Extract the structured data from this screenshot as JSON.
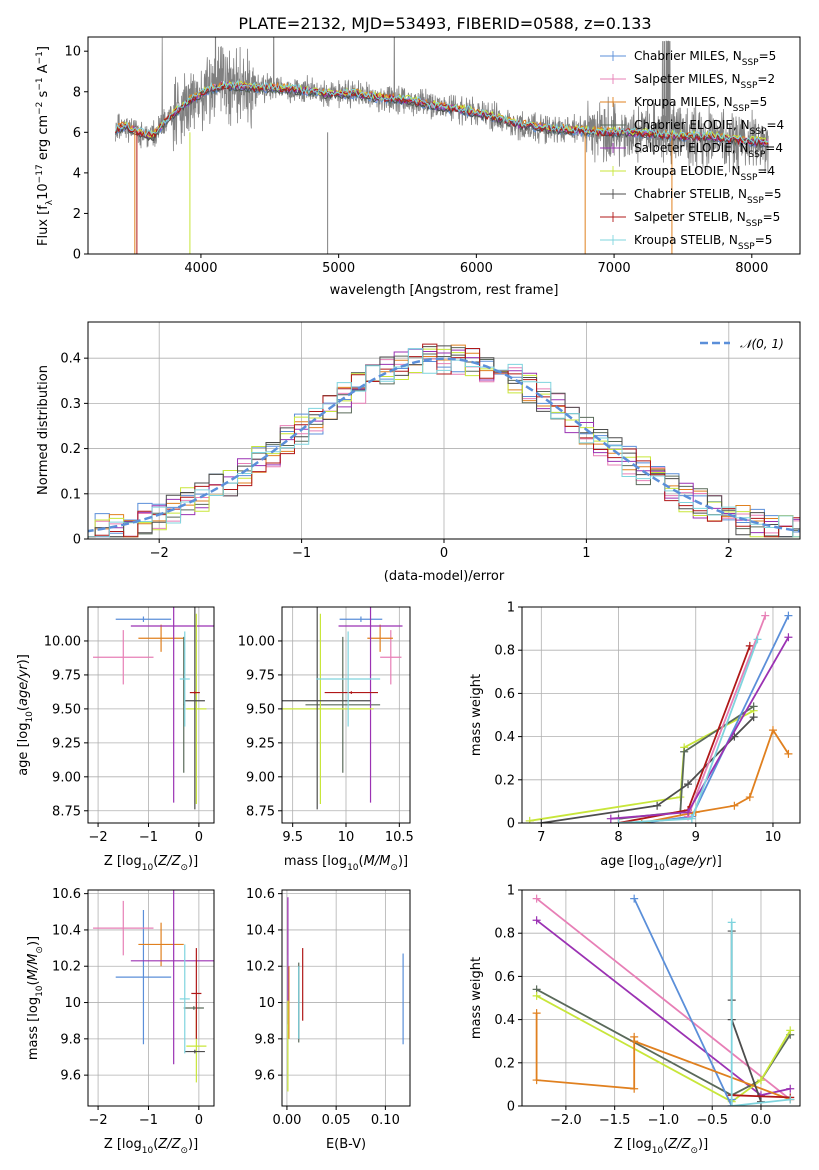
{
  "title": "PLATE=2132, MJD=53493, FIBERID=0588, z=0.133",
  "model_colors": {
    "Chabrier MILES": "#5b8fd9",
    "Salpeter MILES": "#e77fb6",
    "Kroupa MILES": "#e0801f",
    "Chabrier ELODIE": "#5a6a5a",
    "Salpeter ELODIE": "#9b32b3",
    "Kroupa ELODIE": "#c8e63a",
    "Chabrier STELIB": "#4d4d4d",
    "Salpeter STELIB": "#b01818",
    "Kroupa STELIB": "#7fd4de"
  },
  "chart_data": [
    {
      "id": "spectrum",
      "type": "line",
      "xlabel": "wavelength [Angstrom, rest frame]",
      "ylabel": "Flux [f_λ 10^-17 erg cm^-2 s^-1 A^-1]",
      "xlim": [
        3180,
        8350
      ],
      "ylim": [
        0,
        10.7
      ],
      "xticks": [
        4000,
        5000,
        6000,
        7000,
        8000
      ],
      "yticks": [
        0,
        2,
        4,
        6,
        8,
        10
      ],
      "grid": false,
      "legend_position": "right",
      "legend": [
        {
          "label": "Chabrier MILES, N",
          "sub": "SSP",
          "suffix": "=5",
          "color": "#5b8fd9"
        },
        {
          "label": "Salpeter MILES, N",
          "sub": "SSP",
          "suffix": "=2",
          "color": "#e77fb6"
        },
        {
          "label": "Kroupa MILES, N",
          "sub": "SSP",
          "suffix": "=5",
          "color": "#e0801f"
        },
        {
          "label": "Chabrier ELODIE, N",
          "sub": "SSP",
          "suffix": "=4",
          "color": "#5a6a5a"
        },
        {
          "label": "Salpeter ELODIE, N",
          "sub": "SSP",
          "suffix": "=4",
          "color": "#9b32b3"
        },
        {
          "label": "Kroupa ELODIE, N",
          "sub": "SSP",
          "suffix": "=4",
          "color": "#c8e63a"
        },
        {
          "label": "Chabrier STELIB, N",
          "sub": "SSP",
          "suffix": "=5",
          "color": "#4d4d4d"
        },
        {
          "label": "Salpeter STELIB, N",
          "sub": "SSP",
          "suffix": "=5",
          "color": "#b01818"
        },
        {
          "label": "Kroupa STELIB, N",
          "sub": "SSP",
          "suffix": "=5",
          "color": "#7fd4de"
        }
      ],
      "data_series_color": "#808080",
      "model_continuum": {
        "x": [
          3360,
          3450,
          3550,
          3650,
          3750,
          3850,
          3950,
          4050,
          4150,
          4250,
          4350,
          4500,
          4700,
          4900,
          5100,
          5300,
          5500,
          5700,
          5900,
          6100,
          6300,
          6500,
          6700,
          6900,
          7100,
          7300,
          7500,
          7700,
          7900,
          8100
        ],
        "y": [
          6.1,
          6.3,
          6.0,
          5.8,
          6.6,
          7.2,
          7.7,
          8.1,
          8.3,
          8.3,
          8.2,
          8.2,
          8.1,
          7.9,
          7.9,
          7.7,
          7.6,
          7.3,
          7.1,
          6.8,
          6.4,
          6.2,
          6.1,
          6.0,
          6.0,
          5.9,
          5.8,
          5.8,
          5.6,
          5.5
        ]
      }
    },
    {
      "id": "residuals",
      "type": "histogram",
      "xlabel": "(data-model)/error",
      "ylabel": "Normed distribution",
      "xlim": [
        -2.5,
        2.5
      ],
      "ylim": [
        0,
        0.48
      ],
      "xticks": [
        -2,
        -1,
        0,
        1,
        2
      ],
      "yticks": [
        0.0,
        0.1,
        0.2,
        0.3,
        0.4
      ],
      "grid": true,
      "legend_position": "top-right",
      "reference_label": "𝒩(0, 1)",
      "reference_color": "#5b8fd9"
    },
    {
      "id": "age_vs_Z",
      "type": "errorbar",
      "xlabel": "Z [log10(Z/Z⊙)]",
      "ylabel": "age  [log10(age/yr)]",
      "xlim": [
        -2.2,
        0.3
      ],
      "ylim": [
        8.66,
        10.25
      ],
      "xticks": [
        -2,
        -1,
        0
      ],
      "yticks": [
        8.75,
        9.0,
        9.25,
        9.5,
        9.75,
        10.0
      ],
      "grid": true,
      "points": [
        {
          "model": "Chabrier MILES",
          "x": -1.1,
          "xerr": 0.55,
          "y": 10.16,
          "yerr": 0.02
        },
        {
          "model": "Salpeter MILES",
          "x": -1.5,
          "xerr": 0.6,
          "y": 9.88,
          "yerr": 0.2
        },
        {
          "model": "Kroupa MILES",
          "x": -0.75,
          "xerr": 0.45,
          "y": 10.02,
          "yerr": 0.1
        },
        {
          "model": "Chabrier ELODIE",
          "x": -0.3,
          "xerr": 0.01,
          "y": 9.53,
          "yerr": 0.5
        },
        {
          "model": "Salpeter ELODIE",
          "x": -0.5,
          "xerr": 0.85,
          "y": 10.11,
          "yerr": 1.3
        },
        {
          "model": "Kroupa ELODIE",
          "x": -0.05,
          "xerr": 0.2,
          "y": 9.5,
          "yerr": 0.7
        },
        {
          "model": "Chabrier STELIB",
          "x": -0.08,
          "xerr": 0.2,
          "y": 9.56,
          "yerr": 0.8
        },
        {
          "model": "Salpeter STELIB",
          "x": -0.08,
          "xerr": 0.1,
          "y": 9.62,
          "yerr": 0.01
        },
        {
          "model": "Kroupa STELIB",
          "x": -0.28,
          "xerr": 0.1,
          "y": 9.72,
          "yerr": 0.35
        }
      ]
    },
    {
      "id": "age_vs_mass",
      "type": "errorbar",
      "xlabel": "mass [log10(M/M⊙)]",
      "ylabel": "",
      "xlim": [
        9.4,
        10.6
      ],
      "ylim": [
        8.66,
        10.25
      ],
      "xticks": [
        9.5,
        10.0,
        10.5
      ],
      "yticks": [
        8.75,
        9.0,
        9.25,
        9.5,
        9.75,
        10.0
      ],
      "grid": true,
      "points": [
        {
          "model": "Chabrier MILES",
          "x": 10.14,
          "xerr": 0.2,
          "y": 10.16,
          "yerr": 0.02
        },
        {
          "model": "Salpeter MILES",
          "x": 10.42,
          "xerr": 0.1,
          "y": 9.88,
          "yerr": 0.2
        },
        {
          "model": "Kroupa MILES",
          "x": 10.32,
          "xerr": 0.12,
          "y": 10.02,
          "yerr": 0.1
        },
        {
          "model": "Chabrier ELODIE",
          "x": 9.97,
          "xerr": 0.35,
          "y": 9.53,
          "yerr": 0.5
        },
        {
          "model": "Salpeter ELODIE",
          "x": 10.23,
          "xerr": 0.3,
          "y": 10.11,
          "yerr": 1.3
        },
        {
          "model": "Kroupa ELODIE",
          "x": 9.76,
          "xerr": 0.5,
          "y": 9.5,
          "yerr": 0.7
        },
        {
          "model": "Chabrier STELIB",
          "x": 9.73,
          "xerr": 0.5,
          "y": 9.56,
          "yerr": 0.8
        },
        {
          "model": "Salpeter STELIB",
          "x": 10.05,
          "xerr": 0.25,
          "y": 9.62,
          "yerr": 0.01
        },
        {
          "model": "Kroupa STELIB",
          "x": 10.02,
          "xerr": 0.3,
          "y": 9.72,
          "yerr": 0.35
        }
      ]
    },
    {
      "id": "weight_vs_age",
      "type": "line",
      "xlabel": "age  [log10(age/yr)]",
      "ylabel": "mass weight",
      "xlim": [
        6.75,
        10.35
      ],
      "ylim": [
        0,
        1.0
      ],
      "xticks": [
        7,
        8,
        9,
        10
      ],
      "yticks": [
        0.0,
        0.2,
        0.4,
        0.6,
        0.8,
        1.0
      ],
      "grid": true,
      "series": [
        {
          "model": "Kroupa ELODIE",
          "x": [
            6.85,
            8.8,
            8.85,
            9.75
          ],
          "y": [
            0.01,
            0.12,
            0.35,
            0.52
          ]
        },
        {
          "model": "Chabrier ELODIE",
          "x": [
            8.0,
            8.8,
            8.85,
            9.75
          ],
          "y": [
            0.02,
            0.05,
            0.33,
            0.54
          ]
        },
        {
          "model": "Chabrier STELIB",
          "x": [
            7.0,
            8.5,
            8.9,
            9.5,
            9.75
          ],
          "y": [
            0.0,
            0.08,
            0.18,
            0.4,
            0.49
          ]
        },
        {
          "model": "Salpeter STELIB",
          "x": [
            8.0,
            8.9,
            9.7
          ],
          "y": [
            0.0,
            0.06,
            0.82
          ]
        },
        {
          "model": "Chabrier MILES",
          "x": [
            8.3,
            8.95,
            10.2
          ],
          "y": [
            0.0,
            0.03,
            0.96
          ]
        },
        {
          "model": "Salpeter MILES",
          "x": [
            8.9,
            9.9
          ],
          "y": [
            0.03,
            0.96
          ]
        },
        {
          "model": "Kroupa MILES",
          "x": [
            8.3,
            9.0,
            9.5,
            9.7,
            10.0,
            10.2
          ],
          "y": [
            0.0,
            0.05,
            0.08,
            0.12,
            0.43,
            0.32
          ]
        },
        {
          "model": "Salpeter ELODIE",
          "x": [
            7.9,
            8.9,
            10.2
          ],
          "y": [
            0.02,
            0.05,
            0.86
          ]
        },
        {
          "model": "Kroupa STELIB",
          "x": [
            8.0,
            8.95,
            9.8
          ],
          "y": [
            0.0,
            0.02,
            0.85
          ]
        }
      ]
    },
    {
      "id": "mass_vs_Z",
      "type": "errorbar",
      "xlabel": "Z [log10(Z/Z⊙)]",
      "ylabel": "mass [log10(M/M⊙)]",
      "xlim": [
        -2.2,
        0.3
      ],
      "ylim": [
        9.43,
        10.62
      ],
      "xticks": [
        -2,
        -1,
        0
      ],
      "yticks": [
        9.6,
        9.8,
        10.0,
        10.2,
        10.4,
        10.6
      ],
      "grid": true,
      "points": [
        {
          "model": "Chabrier MILES",
          "x": -1.1,
          "xerr": 0.55,
          "y": 10.14,
          "yerr": 0.37
        },
        {
          "model": "Salpeter MILES",
          "x": -1.5,
          "xerr": 0.6,
          "y": 10.41,
          "yerr": 0.15
        },
        {
          "model": "Kroupa MILES",
          "x": -0.75,
          "xerr": 0.45,
          "y": 10.32,
          "yerr": 0.12
        },
        {
          "model": "Chabrier ELODIE",
          "x": -0.1,
          "xerr": 0.2,
          "y": 9.97,
          "yerr": 0.01
        },
        {
          "model": "Salpeter ELODIE",
          "x": -0.5,
          "xerr": 0.85,
          "y": 10.23,
          "yerr": 0.57
        },
        {
          "model": "Kroupa ELODIE",
          "x": -0.05,
          "xerr": 0.2,
          "y": 9.76,
          "yerr": 0.2
        },
        {
          "model": "Chabrier STELIB",
          "x": -0.08,
          "xerr": 0.2,
          "y": 9.73,
          "yerr": 0.01
        },
        {
          "model": "Salpeter STELIB",
          "x": -0.05,
          "xerr": 0.1,
          "y": 10.05,
          "yerr": 0.25
        },
        {
          "model": "Kroupa STELIB",
          "x": -0.28,
          "xerr": 0.1,
          "y": 10.02,
          "yerr": 0.3
        }
      ]
    },
    {
      "id": "mass_vs_ebv",
      "type": "errorbar",
      "xlabel": "E(B-V)",
      "ylabel": "",
      "xlim": [
        -0.005,
        0.125
      ],
      "ylim": [
        9.43,
        10.62
      ],
      "xticks": [
        0.0,
        0.05,
        0.1
      ],
      "xticklabels": [
        "0.00",
        "0.05",
        "0.10"
      ],
      "yticks": [
        9.6,
        9.8,
        10.0,
        10.2,
        10.4,
        10.6
      ],
      "grid": true,
      "points": [
        {
          "model": "Chabrier MILES",
          "x": 0.118,
          "xerr": 0,
          "y": 10.02,
          "yerr": 0.25
        },
        {
          "model": "Salpeter MILES",
          "x": 0.001,
          "xerr": 0,
          "y": 10.41,
          "yerr": 0.15
        },
        {
          "model": "Kroupa MILES",
          "x": 0.002,
          "xerr": 0,
          "y": 10.0,
          "yerr": 0.2
        },
        {
          "model": "Chabrier ELODIE",
          "x": 0.012,
          "xerr": 0,
          "y": 10.0,
          "yerr": 0.22
        },
        {
          "model": "Salpeter ELODIE",
          "x": 0.001,
          "xerr": 0,
          "y": 10.23,
          "yerr": 0.35
        },
        {
          "model": "Kroupa ELODIE",
          "x": 0.001,
          "xerr": 0,
          "y": 9.76,
          "yerr": 0.25
        },
        {
          "model": "Chabrier STELIB",
          "x": 0.012,
          "xerr": 0,
          "y": 10.0,
          "yerr": 0.2
        },
        {
          "model": "Salpeter STELIB",
          "x": 0.016,
          "xerr": 0,
          "y": 10.1,
          "yerr": 0.2
        },
        {
          "model": "Kroupa STELIB",
          "x": 0.012,
          "xerr": 0,
          "y": 10.0,
          "yerr": 0.2
        }
      ]
    },
    {
      "id": "weight_vs_Z",
      "type": "line",
      "xlabel": "Z [log10(Z/Z⊙)]",
      "ylabel": "mass weight",
      "xlim": [
        -2.45,
        0.4
      ],
      "ylim": [
        0,
        1.0
      ],
      "xticks": [
        -2.0,
        -1.5,
        -1.0,
        -0.5,
        0.0
      ],
      "xticklabels": [
        "−2.0",
        "−1.5",
        "−1.0",
        "−0.5",
        "0.0"
      ],
      "yticks": [
        0.0,
        0.2,
        0.4,
        0.6,
        0.8,
        1.0
      ],
      "grid": true,
      "series": [
        {
          "model": "Salpeter MILES",
          "x": [
            -2.3,
            0.3
          ],
          "y": [
            0.96,
            0.03
          ]
        },
        {
          "model": "Salpeter ELODIE",
          "x": [
            -2.3,
            0.0,
            0.3
          ],
          "y": [
            0.86,
            0.05,
            0.08
          ]
        },
        {
          "model": "Chabrier ELODIE",
          "x": [
            -2.3,
            -0.3,
            0.0,
            0.3
          ],
          "y": [
            0.54,
            0.05,
            0.12,
            0.33
          ]
        },
        {
          "model": "Kroupa ELODIE",
          "x": [
            -2.3,
            -0.3,
            0.0,
            0.3
          ],
          "y": [
            0.51,
            0.02,
            0.12,
            0.35
          ]
        },
        {
          "model": "Chabrier MILES",
          "x": [
            -1.3,
            -0.3,
            -0.3
          ],
          "y": [
            0.96,
            0.0,
            0.03
          ]
        },
        {
          "model": "Kroupa MILES",
          "x": [
            -2.3,
            -2.3,
            -1.3,
            -1.3,
            -1.3,
            0.3
          ],
          "y": [
            0.43,
            0.12,
            0.08,
            0.32,
            0.3,
            0.03
          ]
        },
        {
          "model": "Chabrier STELIB",
          "x": [
            -0.3,
            -0.3,
            -0.3,
            0.0
          ],
          "y": [
            0.81,
            0.49,
            0.4,
            0.02
          ]
        },
        {
          "model": "Salpeter STELIB",
          "x": [
            -0.3,
            0.3
          ],
          "y": [
            0.05,
            0.04
          ]
        },
        {
          "model": "Kroupa STELIB",
          "x": [
            -0.3,
            -0.3,
            0.3
          ],
          "y": [
            0.85,
            0.0,
            0.03
          ]
        }
      ]
    }
  ]
}
